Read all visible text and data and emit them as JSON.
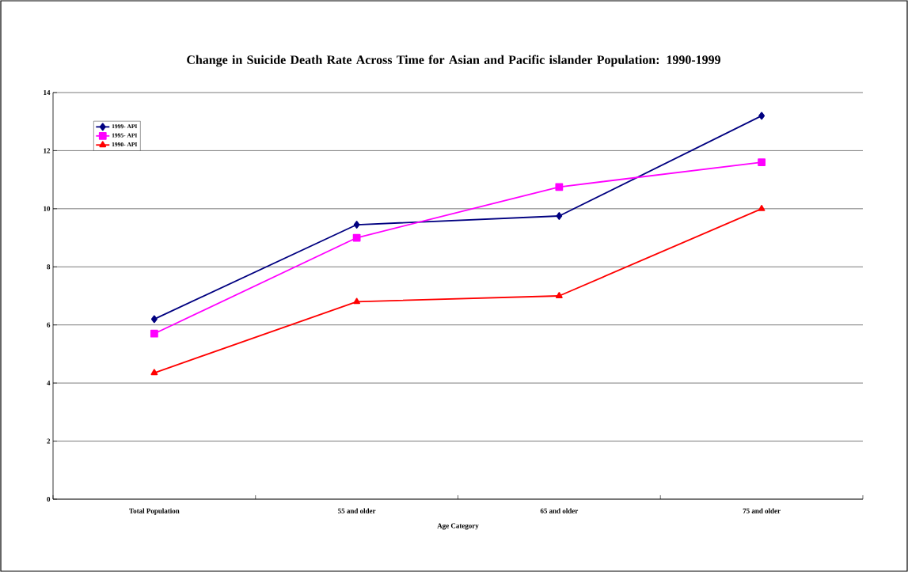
{
  "chart_data": {
    "type": "line",
    "title": "Change in Suicide Death Rate Across Time for Asian and Pacific islander Population: 1990-1999",
    "xlabel": "Age Category",
    "categories": [
      "Total Population",
      "55 and older",
      "65 and older",
      "75 and older"
    ],
    "series": [
      {
        "name": "1999- API",
        "color": "#000080",
        "marker": "diamond",
        "values": [
          6.2,
          9.45,
          9.75,
          13.2
        ]
      },
      {
        "name": "1995- API",
        "color": "#ff00ff",
        "marker": "square",
        "values": [
          5.7,
          9.0,
          10.75,
          11.6
        ]
      },
      {
        "name": "1990- API",
        "color": "#ff0000",
        "marker": "triangle",
        "values": [
          4.35,
          6.8,
          7.0,
          10.0
        ]
      }
    ],
    "ylim": [
      0,
      14
    ],
    "yticks": [
      0,
      2,
      4,
      6,
      8,
      10,
      12,
      14
    ],
    "grid": "y",
    "legend": "top left"
  }
}
